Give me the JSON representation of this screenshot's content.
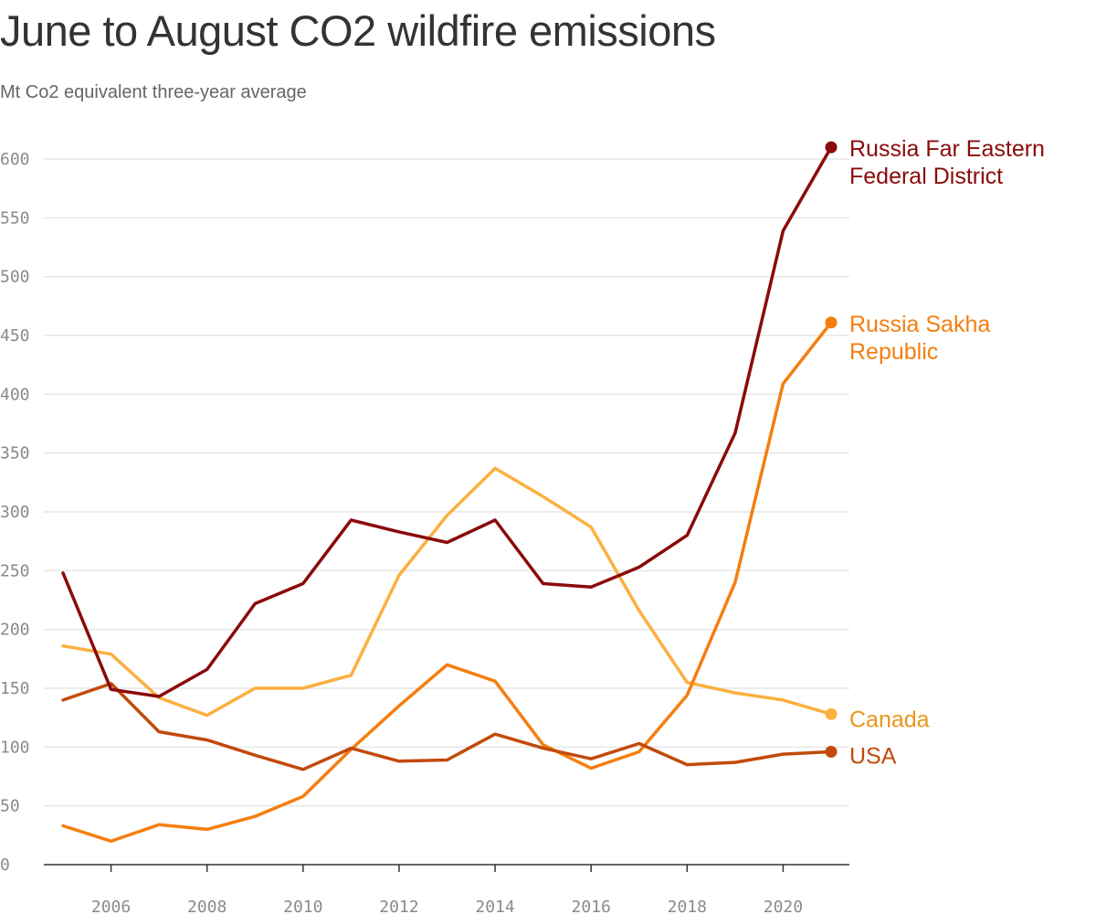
{
  "chart_data": {
    "type": "line",
    "title": "June to August CO2 wildfire emissions",
    "subtitle": "Mt Co2 equivalent three-year average",
    "xlabel": "",
    "ylabel": "",
    "x": [
      2005,
      2006,
      2007,
      2008,
      2009,
      2010,
      2011,
      2012,
      2013,
      2014,
      2015,
      2016,
      2017,
      2018,
      2019,
      2020,
      2021
    ],
    "xlim": [
      2005,
      2021
    ],
    "ylim": [
      0,
      600
    ],
    "x_ticks": [
      2006,
      2008,
      2010,
      2012,
      2014,
      2016,
      2018,
      2020
    ],
    "y_ticks": [
      0,
      50,
      100,
      150,
      200,
      250,
      300,
      350,
      400,
      450,
      500,
      550,
      600
    ],
    "grid": true,
    "legend": "end-of-line labels",
    "series": [
      {
        "name": "Canada",
        "label_lines": [
          "Canada"
        ],
        "color": "#fbb040",
        "label_color": "#e8961e",
        "values": [
          186,
          179,
          142,
          127,
          150,
          150,
          161,
          246,
          297,
          337,
          313,
          287,
          216,
          155,
          146,
          140,
          128
        ]
      },
      {
        "name": "Russia Sakha Republic",
        "label_lines": [
          "Russia Sakha",
          "Republic"
        ],
        "color": "#f57e0f",
        "label_color": "#f57e0f",
        "values": [
          33,
          20,
          34,
          30,
          41,
          58,
          98,
          135,
          170,
          156,
          102,
          82,
          96,
          144,
          240,
          409,
          461
        ]
      },
      {
        "name": "USA",
        "label_lines": [
          "USA"
        ],
        "color": "#c24a0a",
        "label_color": "#c24a0a",
        "values": [
          140,
          154,
          113,
          106,
          93,
          81,
          99,
          88,
          89,
          111,
          99,
          90,
          103,
          85,
          87,
          94,
          96
        ]
      },
      {
        "name": "Russia Far Eastern Federal District",
        "label_lines": [
          "Russia Far Eastern",
          "Federal District"
        ],
        "color": "#8b0a0a",
        "label_color": "#8b0a0a",
        "values": [
          248,
          149,
          143,
          166,
          222,
          239,
          293,
          283,
          274,
          293,
          239,
          236,
          253,
          280,
          367,
          539,
          610
        ]
      }
    ]
  }
}
